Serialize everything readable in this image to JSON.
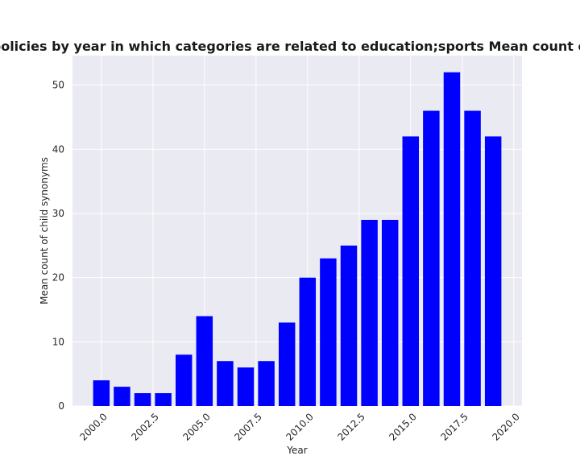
{
  "chart_data": {
    "type": "bar",
    "title": "Mean count of child synonyms in privacy policies by year in which categories are related to education;sports Mean count of child synonyms in privacy policies by year",
    "xlabel": "Year",
    "ylabel": "Mean count of child synonyms",
    "x": [
      2000,
      2001,
      2002,
      2003,
      2004,
      2005,
      2006,
      2007,
      2008,
      2009,
      2010,
      2011,
      2012,
      2013,
      2014,
      2015,
      2016,
      2017,
      2018,
      2019
    ],
    "values": [
      4,
      3,
      2,
      2,
      8,
      14,
      7,
      6,
      7,
      13,
      20,
      23,
      25,
      29,
      29,
      42,
      46,
      52,
      46,
      42
    ],
    "xlim": [
      1998.6,
      2020.4
    ],
    "ylim": [
      0,
      54.6
    ],
    "xticks": [
      2000.0,
      2002.5,
      2005.0,
      2007.5,
      2010.0,
      2012.5,
      2015.0,
      2017.5,
      2020.0
    ],
    "xtick_labels": [
      "2000.0",
      "2002.5",
      "2005.0",
      "2007.5",
      "2010.0",
      "2012.5",
      "2015.0",
      "2017.5",
      "2020.0"
    ],
    "yticks": [
      0,
      10,
      20,
      30,
      40,
      50
    ],
    "ytick_labels": [
      "0",
      "10",
      "20",
      "30",
      "40",
      "50"
    ],
    "grid": true,
    "bar_color": "#0000ff",
    "plot_background": "#eaeaf2",
    "grid_color": "#ffffff"
  }
}
